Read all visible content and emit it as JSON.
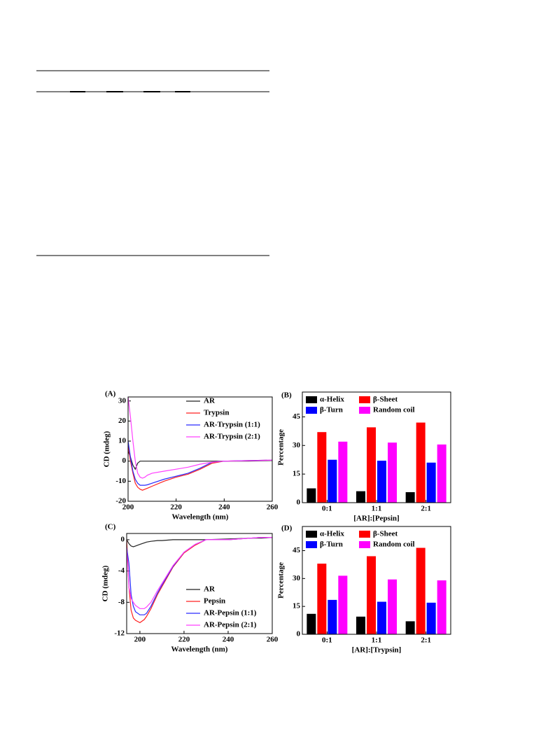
{
  "chart_data": [
    {
      "type": "line",
      "label": "(A)",
      "xlabel": "Wavelength (nm)",
      "ylabel": "CD (mdeg)",
      "xlim": [
        200,
        260
      ],
      "xticks": [
        200,
        220,
        240,
        260
      ],
      "ylim": [
        -20,
        32
      ],
      "yticks": [
        30,
        20,
        10,
        0,
        -10,
        -20
      ],
      "legend": "top-right",
      "x": [
        200,
        201,
        202,
        203,
        204,
        205,
        206,
        207,
        208,
        210,
        215,
        220,
        225,
        230,
        235,
        240,
        250,
        260
      ],
      "series": [
        {
          "name": "AR",
          "color": "#222222",
          "values": [
            5,
            2,
            -2,
            -4,
            -1,
            0,
            0,
            0,
            0,
            0,
            0,
            0,
            0,
            0,
            0,
            0,
            0,
            0.3
          ]
        },
        {
          "name": "Trypsin",
          "color": "#ff2020",
          "values": [
            8,
            0,
            -6,
            -11,
            -13,
            -14,
            -14.5,
            -14,
            -13.5,
            -12.5,
            -10,
            -8,
            -6.5,
            -4,
            -1,
            0,
            0.3,
            0.5
          ]
        },
        {
          "name": "AR-Trypsin (1:1)",
          "color": "#2a2aff",
          "values": [
            10,
            2,
            -5,
            -9,
            -11,
            -12,
            -12,
            -12,
            -11.8,
            -11,
            -9,
            -7.5,
            -6,
            -3.5,
            -0.5,
            0,
            0.3,
            0.5
          ]
        },
        {
          "name": "AR-Trypsin (2:1)",
          "color": "#ff40ff",
          "values": [
            32,
            22,
            10,
            0,
            -6,
            -8,
            -8.5,
            -8,
            -7,
            -6,
            -5,
            -4,
            -3,
            -1.5,
            -0.5,
            0,
            0.2,
            0.5
          ]
        }
      ]
    },
    {
      "type": "bar",
      "label": "(B)",
      "xlabel": "[AR]:[Pepsin]",
      "ylabel": "Percentage",
      "categories": [
        "0:1",
        "1:1",
        "2:1"
      ],
      "ylim": [
        0,
        58
      ],
      "yticks": [
        0,
        15,
        30,
        45
      ],
      "legend": "top",
      "series": [
        {
          "name": "α-Helix",
          "color": "#000000",
          "values": [
            7.5,
            6,
            5.5
          ]
        },
        {
          "name": "β-Sheet",
          "color": "#ff0000",
          "values": [
            37,
            39.5,
            42
          ]
        },
        {
          "name": "β-Turn",
          "color": "#0000ff",
          "values": [
            22.5,
            22,
            21
          ]
        },
        {
          "name": "Random coil",
          "color": "#ff00ff",
          "values": [
            32,
            31.5,
            30.5
          ]
        }
      ]
    },
    {
      "type": "line",
      "label": "(C)",
      "xlabel": "Wavelength (nm)",
      "ylabel": "CD (mdeg)",
      "xlim": [
        194,
        260
      ],
      "xticks": [
        200,
        220,
        240,
        260
      ],
      "ylim": [
        -12,
        0.8
      ],
      "yticks": [
        0,
        -4,
        -8,
        -12
      ],
      "legend": "bottom-right",
      "x": [
        194,
        195,
        196,
        197,
        198,
        200,
        202,
        203,
        205,
        208,
        210,
        215,
        220,
        225,
        230,
        240,
        250,
        255,
        260
      ],
      "series": [
        {
          "name": "AR",
          "color": "#222222",
          "values": [
            0,
            -0.5,
            -0.8,
            -0.9,
            -0.8,
            -0.6,
            -0.4,
            -0.3,
            -0.2,
            -0.1,
            -0.1,
            0,
            0,
            0,
            0,
            0.1,
            0.2,
            0.2,
            0.3
          ]
        },
        {
          "name": "Pepsin",
          "color": "#ff2020",
          "values": [
            0,
            -6,
            -9,
            -10,
            -10.3,
            -10.6,
            -10.2,
            -9.8,
            -8.8,
            -7,
            -6,
            -3.5,
            -1.7,
            -0.7,
            0,
            0,
            0.2,
            0.3,
            0.3
          ]
        },
        {
          "name": "AR-Pepsin (1:1)",
          "color": "#2a2aff",
          "values": [
            -1,
            -3,
            -7,
            -8.5,
            -9.2,
            -9.6,
            -9.6,
            -9.4,
            -8.5,
            -6.8,
            -5.8,
            -3.4,
            -1.6,
            -0.6,
            0,
            0,
            0.2,
            0.3,
            0.3
          ]
        },
        {
          "name": "AR-Pepsin (2:1)",
          "color": "#ff40ff",
          "values": [
            -1,
            -6,
            -7.5,
            -8,
            -8.4,
            -8.8,
            -8.8,
            -8.6,
            -8,
            -6.5,
            -5.6,
            -3.3,
            -1.6,
            -0.6,
            0,
            0,
            0.2,
            0.3,
            0.3
          ]
        }
      ]
    },
    {
      "type": "bar",
      "label": "(D)",
      "xlabel": "[AR]:[Trypsin]",
      "ylabel": "Percentage",
      "categories": [
        "0:1",
        "1:1",
        "2:1"
      ],
      "ylim": [
        0,
        58
      ],
      "yticks": [
        0,
        15,
        30,
        45
      ],
      "legend": "top",
      "series": [
        {
          "name": "α-Helix",
          "color": "#000000",
          "values": [
            11,
            9.5,
            7
          ]
        },
        {
          "name": "β-Sheet",
          "color": "#ff0000",
          "values": [
            38,
            42,
            46.5
          ]
        },
        {
          "name": "β-Turn",
          "color": "#0000ff",
          "values": [
            18.5,
            17.5,
            17
          ]
        },
        {
          "name": "Random coil",
          "color": "#ff00ff",
          "values": [
            31.5,
            29.5,
            29
          ]
        }
      ]
    }
  ]
}
